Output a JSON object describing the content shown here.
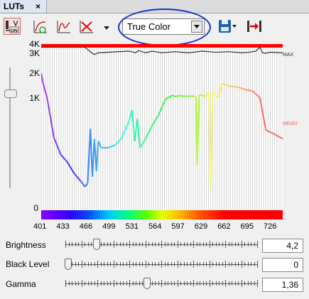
{
  "panel": {
    "tab_label": "LUTs",
    "tab_close": "×"
  },
  "toolbar": {
    "onoff_icon": "on-off-toggle-icon",
    "lut_mode": "True Color",
    "icons": [
      "lut-linear-icon",
      "lut-curve-icon",
      "lut-reset-icon",
      "dropdown-arrow-icon",
      "save-icon",
      "fit-range-icon"
    ]
  },
  "chart_data": {
    "type": "line",
    "title": "",
    "ylabels": [
      "4K",
      "3K",
      "2K",
      "1K",
      "0"
    ],
    "xticks": [
      "401",
      "433",
      "466",
      "499",
      "531",
      "564",
      "597",
      "629",
      "662",
      "695",
      "726"
    ],
    "series": [
      {
        "name": "MAX",
        "color": "#333333",
        "x": [
          401,
          466,
          470,
          476,
          480,
          486,
          531,
          536,
          541,
          546,
          556,
          566,
          576,
          580,
          600,
          620,
          640,
          660,
          680,
          700,
          710,
          720,
          726,
          730,
          735,
          740,
          760
        ],
        "y": [
          3800,
          3800,
          3600,
          3300,
          3150,
          3300,
          3450,
          3400,
          3300,
          3500,
          3300,
          3450,
          3350,
          3300,
          3400,
          3300,
          3450,
          3350,
          3400,
          3300,
          3350,
          3450,
          3800,
          3300,
          3250,
          3350,
          3300
        ]
      },
      {
        "name": "MEAN",
        "color": "spectrum",
        "x": [
          401,
          403,
          410,
          420,
          430,
          440,
          450,
          460,
          466,
          470,
          474,
          477,
          480,
          483,
          486,
          490,
          500,
          510,
          520,
          531,
          536,
          540,
          544,
          548,
          556,
          566,
          576,
          586,
          597,
          600,
          605,
          615,
          629,
          631,
          633,
          636,
          646,
          650,
          653,
          656,
          662,
          665,
          670,
          680,
          695,
          705,
          715,
          726,
          735,
          745,
          760
        ],
        "y": [
          1950,
          1650,
          1000,
          650,
          500,
          430,
          330,
          260,
          210,
          240,
          730,
          300,
          640,
          350,
          620,
          560,
          560,
          580,
          640,
          790,
          900,
          620,
          820,
          560,
          640,
          760,
          860,
          1000,
          1130,
          1070,
          1110,
          1090,
          1100,
          1040,
          400,
          1140,
          1090,
          1250,
          180,
          1250,
          1050,
          1080,
          1570,
          1470,
          1420,
          1330,
          1290,
          1040,
          720,
          690,
          640
        ]
      }
    ],
    "saturation_bar": {
      "color": "#ff0000",
      "value": 4095
    },
    "ylim": [
      0,
      4095
    ],
    "xlim": [
      401,
      760
    ],
    "legend": [
      "MAX",
      "MEAN"
    ]
  },
  "controls": {
    "brightness_label": "Brightness",
    "brightness_value": "4,2",
    "brightness_level": 0.15,
    "black_level_label": "Black Level",
    "black_level_value": "0",
    "black_level_level": 0.0,
    "gamma_label": "Gamma",
    "gamma_value": "1,36",
    "gamma_level": 0.42
  },
  "colors": {
    "annotation": "#1531c8",
    "max_line": "#333333",
    "saturation": "#ff0000"
  }
}
